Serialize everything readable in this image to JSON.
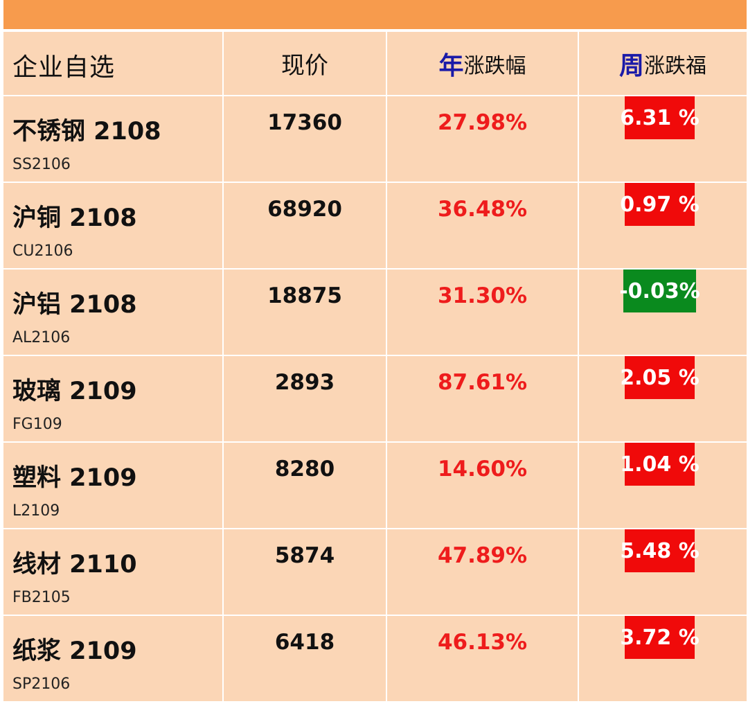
{
  "header": {
    "col1": "企业自选",
    "col2": "现价",
    "col3_accent": "年",
    "col3_rest": "涨跌幅",
    "col4_accent": "周",
    "col4_rest": "涨跌福"
  },
  "rows": [
    {
      "name": "不锈钢 2108",
      "code": "SS2106",
      "price": "17360",
      "year_change": "27.98%",
      "week_change": "6.31 %",
      "week_trend": "up"
    },
    {
      "name": "沪铜 2108",
      "code": "CU2106",
      "price": "68920",
      "year_change": "36.48%",
      "week_change": "0.97 %",
      "week_trend": "up"
    },
    {
      "name": "沪铝 2108",
      "code": "AL2106",
      "price": "18875",
      "year_change": "31.30%",
      "week_change": "-0.03%",
      "week_trend": "down"
    },
    {
      "name": "玻璃 2109",
      "code": "FG109",
      "price": "2893",
      "year_change": "87.61%",
      "week_change": "2.05 %",
      "week_trend": "up"
    },
    {
      "name": "塑料 2109",
      "code": "L2109",
      "price": "8280",
      "year_change": "14.60%",
      "week_change": "1.04 %",
      "week_trend": "up"
    },
    {
      "name": "线材 2110",
      "code": "FB2105",
      "price": "5874",
      "year_change": "47.89%",
      "week_change": "5.48 %",
      "week_trend": "up"
    },
    {
      "name": "纸浆 2109",
      "code": "SP2106",
      "price": "6418",
      "year_change": "46.13%",
      "week_change": "3.72 %",
      "week_trend": "up"
    }
  ],
  "colors": {
    "topbar": "#f79b4d",
    "cell": "#fbd6b6",
    "up_badge": "#f00a0a",
    "down_badge": "#0a8a1e",
    "year_text": "#ee1c1c",
    "header_accent": "#1a1aa8"
  }
}
